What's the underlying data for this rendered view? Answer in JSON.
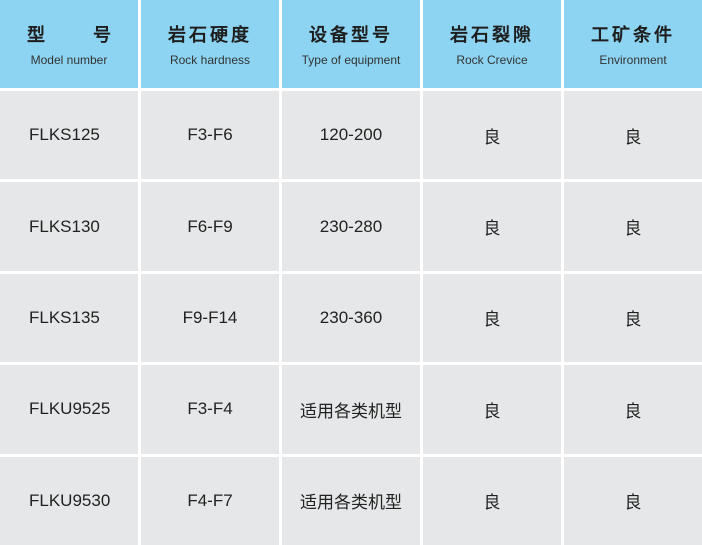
{
  "header": [
    {
      "zh_parts": [
        "型",
        "号"
      ],
      "en": "Model number"
    },
    {
      "zh": "岩石硬度",
      "en": "Rock hardness"
    },
    {
      "zh": "设备型号",
      "en": "Type of equipment"
    },
    {
      "zh": "岩石裂隙",
      "en": "Rock Crevice"
    },
    {
      "zh": "工矿条件",
      "en": "Environment"
    }
  ],
  "rows": [
    [
      "FLKS125",
      "F3-F6",
      "120-200",
      "良",
      "良"
    ],
    [
      "FLKS130",
      "F6-F9",
      "230-280",
      "良",
      "良"
    ],
    [
      "FLKS135",
      "F9-F14",
      "230-360",
      "良",
      "良"
    ],
    [
      "FLKU9525",
      "F3-F4",
      "适用各类机型",
      "良",
      "良"
    ],
    [
      "FLKU9530",
      "F4-F7",
      "适用各类机型",
      "良",
      "良"
    ]
  ],
  "colors": {
    "header_bg": "#8cd4f2",
    "cell_bg": "#e6e7e8"
  }
}
